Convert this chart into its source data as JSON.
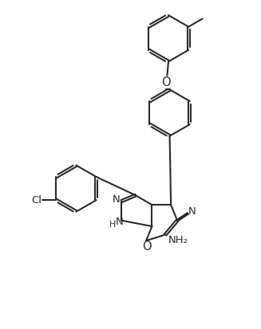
{
  "line_color": "#2B2B2B",
  "bg_color": "#FFFFFF",
  "lw": 1.5,
  "fs": 9.5,
  "figsize": [
    3.27,
    4.13
  ],
  "dpi": 100,
  "xlim": [
    0,
    10
  ],
  "ylim": [
    0,
    13
  ]
}
